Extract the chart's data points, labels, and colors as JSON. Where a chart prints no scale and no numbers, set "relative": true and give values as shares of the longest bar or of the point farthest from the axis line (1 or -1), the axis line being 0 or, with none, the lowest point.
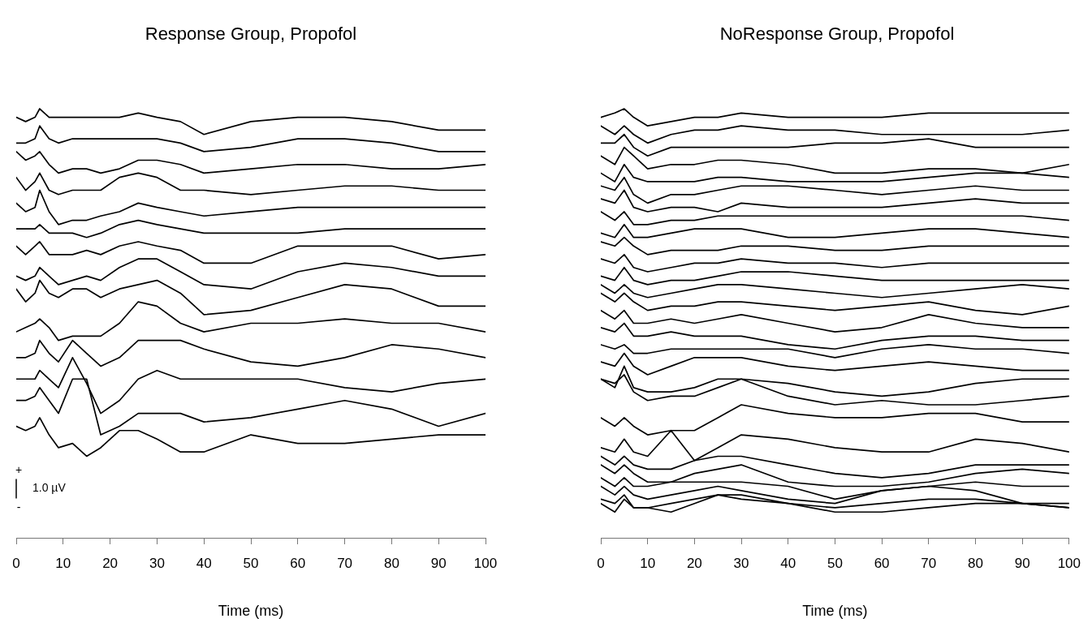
{
  "chart_data": [
    {
      "type": "line",
      "title": "Response Group, Propofol",
      "xlabel": "Time (ms)",
      "x": [
        0,
        2,
        4,
        5,
        7,
        9,
        12,
        15,
        18,
        22,
        26,
        30,
        35,
        40,
        50,
        60,
        70,
        80,
        90,
        100
      ],
      "xlim": [
        0,
        100
      ],
      "xticks": [
        0,
        10,
        20,
        30,
        40,
        50,
        60,
        70,
        80,
        90,
        100
      ],
      "relative": true,
      "grid": false,
      "legend": false,
      "marker": "none",
      "annotations": [
        "+",
        "1.0 µV",
        "-"
      ],
      "series": [
        {
          "color": "#000000",
          "values": [
            0.98,
            0.97,
            0.98,
            1.0,
            0.98,
            0.98,
            0.98,
            0.98,
            0.98,
            0.98,
            0.99,
            0.98,
            0.97,
            0.94,
            0.97,
            0.98,
            0.98,
            0.97,
            0.95,
            0.95
          ]
        },
        {
          "color": "#000000",
          "values": [
            0.92,
            0.92,
            0.93,
            0.96,
            0.93,
            0.92,
            0.93,
            0.93,
            0.93,
            0.93,
            0.93,
            0.93,
            0.92,
            0.9,
            0.91,
            0.93,
            0.93,
            0.92,
            0.9,
            0.9
          ]
        },
        {
          "color": "#000000",
          "values": [
            0.9,
            0.88,
            0.89,
            0.9,
            0.87,
            0.85,
            0.86,
            0.86,
            0.85,
            0.86,
            0.88,
            0.88,
            0.87,
            0.85,
            0.86,
            0.87,
            0.87,
            0.86,
            0.86,
            0.87
          ]
        },
        {
          "color": "#000000",
          "values": [
            0.84,
            0.81,
            0.83,
            0.85,
            0.81,
            0.8,
            0.81,
            0.81,
            0.81,
            0.84,
            0.85,
            0.84,
            0.81,
            0.81,
            0.8,
            0.81,
            0.82,
            0.82,
            0.81,
            0.81
          ]
        },
        {
          "color": "#000000",
          "values": [
            0.78,
            0.76,
            0.77,
            0.81,
            0.76,
            0.73,
            0.74,
            0.74,
            0.75,
            0.76,
            0.78,
            0.77,
            0.76,
            0.75,
            0.76,
            0.77,
            0.77,
            0.77,
            0.77,
            0.77
          ]
        },
        {
          "color": "#000000",
          "values": [
            0.72,
            0.72,
            0.72,
            0.73,
            0.71,
            0.71,
            0.71,
            0.7,
            0.71,
            0.73,
            0.74,
            0.73,
            0.72,
            0.71,
            0.71,
            0.71,
            0.72,
            0.72,
            0.72,
            0.72
          ]
        },
        {
          "color": "#000000",
          "values": [
            0.68,
            0.66,
            0.68,
            0.69,
            0.66,
            0.66,
            0.66,
            0.67,
            0.66,
            0.68,
            0.69,
            0.68,
            0.67,
            0.64,
            0.64,
            0.68,
            0.68,
            0.68,
            0.65,
            0.66
          ]
        },
        {
          "color": "#000000",
          "values": [
            0.61,
            0.6,
            0.61,
            0.63,
            0.61,
            0.59,
            0.6,
            0.61,
            0.6,
            0.63,
            0.65,
            0.65,
            0.62,
            0.59,
            0.58,
            0.62,
            0.64,
            0.63,
            0.61,
            0.61
          ]
        },
        {
          "color": "#000000",
          "values": [
            0.58,
            0.55,
            0.57,
            0.6,
            0.57,
            0.56,
            0.58,
            0.58,
            0.56,
            0.58,
            0.59,
            0.6,
            0.57,
            0.52,
            0.53,
            0.56,
            0.59,
            0.58,
            0.54,
            0.54
          ]
        },
        {
          "color": "#000000",
          "values": [
            0.48,
            0.49,
            0.5,
            0.51,
            0.49,
            0.46,
            0.47,
            0.47,
            0.47,
            0.5,
            0.55,
            0.54,
            0.5,
            0.48,
            0.5,
            0.5,
            0.51,
            0.5,
            0.5,
            0.48
          ]
        },
        {
          "color": "#000000",
          "values": [
            0.42,
            0.42,
            0.43,
            0.46,
            0.43,
            0.41,
            0.46,
            0.43,
            0.4,
            0.42,
            0.46,
            0.46,
            0.46,
            0.44,
            0.41,
            0.4,
            0.42,
            0.45,
            0.44,
            0.42
          ]
        },
        {
          "color": "#000000",
          "values": [
            0.37,
            0.37,
            0.37,
            0.39,
            0.37,
            0.35,
            0.42,
            0.36,
            0.29,
            0.32,
            0.37,
            0.39,
            0.37,
            0.37,
            0.37,
            0.37,
            0.35,
            0.34,
            0.36,
            0.37
          ]
        },
        {
          "color": "#000000",
          "values": [
            0.32,
            0.32,
            0.33,
            0.35,
            0.32,
            0.29,
            0.37,
            0.37,
            0.24,
            0.26,
            0.29,
            0.29,
            0.29,
            0.27,
            0.28,
            0.3,
            0.32,
            0.3,
            0.26,
            0.29
          ]
        },
        {
          "color": "#000000",
          "values": [
            0.26,
            0.25,
            0.26,
            0.28,
            0.24,
            0.21,
            0.22,
            0.19,
            0.21,
            0.25,
            0.25,
            0.23,
            0.2,
            0.2,
            0.24,
            0.22,
            0.22,
            0.23,
            0.24,
            0.24
          ]
        }
      ]
    },
    {
      "type": "line",
      "title": "NoResponse Group, Propofol",
      "xlabel": "Time (ms)",
      "x": [
        0,
        3,
        5,
        7,
        10,
        15,
        20,
        25,
        30,
        40,
        50,
        60,
        70,
        80,
        90,
        100
      ],
      "xlim": [
        0,
        100
      ],
      "xticks": [
        0,
        10,
        20,
        30,
        40,
        50,
        60,
        70,
        80,
        90,
        100
      ],
      "relative": true,
      "grid": false,
      "legend": false,
      "marker": "none",
      "series": [
        {
          "color": "#000000",
          "values": [
            0.98,
            0.99,
            1.0,
            0.98,
            0.96,
            0.97,
            0.98,
            0.98,
            0.99,
            0.98,
            0.98,
            0.98,
            0.99,
            0.99,
            0.99,
            0.99
          ]
        },
        {
          "color": "#000000",
          "values": [
            0.96,
            0.94,
            0.96,
            0.94,
            0.92,
            0.94,
            0.95,
            0.95,
            0.96,
            0.95,
            0.95,
            0.94,
            0.94,
            0.94,
            0.94,
            0.95
          ]
        },
        {
          "color": "#000000",
          "values": [
            0.92,
            0.92,
            0.94,
            0.91,
            0.89,
            0.91,
            0.91,
            0.91,
            0.91,
            0.91,
            0.92,
            0.92,
            0.93,
            0.91,
            0.91,
            0.91
          ]
        },
        {
          "color": "#000000",
          "values": [
            0.89,
            0.87,
            0.91,
            0.89,
            0.86,
            0.87,
            0.87,
            0.88,
            0.88,
            0.87,
            0.85,
            0.85,
            0.86,
            0.86,
            0.85,
            0.87
          ]
        },
        {
          "color": "#000000",
          "values": [
            0.85,
            0.83,
            0.87,
            0.84,
            0.83,
            0.83,
            0.83,
            0.84,
            0.84,
            0.83,
            0.83,
            0.83,
            0.84,
            0.85,
            0.85,
            0.84
          ]
        },
        {
          "color": "#000000",
          "values": [
            0.82,
            0.81,
            0.84,
            0.8,
            0.78,
            0.8,
            0.8,
            0.81,
            0.82,
            0.82,
            0.81,
            0.8,
            0.81,
            0.82,
            0.81,
            0.81
          ]
        },
        {
          "color": "#000000",
          "values": [
            0.79,
            0.78,
            0.81,
            0.77,
            0.76,
            0.77,
            0.77,
            0.76,
            0.78,
            0.77,
            0.77,
            0.77,
            0.78,
            0.79,
            0.78,
            0.78
          ]
        },
        {
          "color": "#000000",
          "values": [
            0.76,
            0.74,
            0.76,
            0.73,
            0.73,
            0.74,
            0.74,
            0.75,
            0.75,
            0.75,
            0.75,
            0.75,
            0.75,
            0.75,
            0.75,
            0.74
          ]
        },
        {
          "color": "#000000",
          "values": [
            0.71,
            0.7,
            0.73,
            0.7,
            0.7,
            0.71,
            0.72,
            0.72,
            0.72,
            0.7,
            0.7,
            0.71,
            0.72,
            0.72,
            0.71,
            0.7
          ]
        },
        {
          "color": "#000000",
          "values": [
            0.69,
            0.68,
            0.7,
            0.68,
            0.66,
            0.67,
            0.67,
            0.67,
            0.68,
            0.68,
            0.67,
            0.67,
            0.68,
            0.68,
            0.68,
            0.68
          ]
        },
        {
          "color": "#000000",
          "values": [
            0.65,
            0.64,
            0.66,
            0.63,
            0.62,
            0.63,
            0.64,
            0.64,
            0.65,
            0.64,
            0.64,
            0.63,
            0.64,
            0.64,
            0.64,
            0.64
          ]
        },
        {
          "color": "#000000",
          "values": [
            0.61,
            0.6,
            0.63,
            0.6,
            0.59,
            0.6,
            0.6,
            0.61,
            0.62,
            0.62,
            0.61,
            0.6,
            0.6,
            0.6,
            0.6,
            0.6
          ]
        },
        {
          "color": "#000000",
          "values": [
            0.59,
            0.57,
            0.59,
            0.57,
            0.56,
            0.57,
            0.58,
            0.59,
            0.59,
            0.58,
            0.57,
            0.56,
            0.57,
            0.58,
            0.59,
            0.58
          ]
        },
        {
          "color": "#000000",
          "values": [
            0.57,
            0.55,
            0.57,
            0.55,
            0.53,
            0.54,
            0.54,
            0.55,
            0.55,
            0.54,
            0.53,
            0.54,
            0.55,
            0.53,
            0.52,
            0.54
          ]
        },
        {
          "color": "#000000",
          "values": [
            0.53,
            0.51,
            0.53,
            0.5,
            0.5,
            0.51,
            0.5,
            0.51,
            0.52,
            0.5,
            0.48,
            0.49,
            0.52,
            0.5,
            0.49,
            0.49
          ]
        },
        {
          "color": "#000000",
          "values": [
            0.49,
            0.48,
            0.5,
            0.47,
            0.47,
            0.48,
            0.47,
            0.47,
            0.47,
            0.45,
            0.44,
            0.46,
            0.47,
            0.47,
            0.46,
            0.46
          ]
        },
        {
          "color": "#000000",
          "values": [
            0.45,
            0.44,
            0.45,
            0.43,
            0.43,
            0.44,
            0.44,
            0.44,
            0.44,
            0.44,
            0.42,
            0.44,
            0.45,
            0.44,
            0.44,
            0.43
          ]
        },
        {
          "color": "#000000",
          "values": [
            0.41,
            0.4,
            0.43,
            0.4,
            0.38,
            0.4,
            0.42,
            0.42,
            0.42,
            0.4,
            0.39,
            0.4,
            0.41,
            0.4,
            0.39,
            0.39
          ]
        },
        {
          "color": "#000000",
          "values": [
            0.37,
            0.35,
            0.4,
            0.35,
            0.34,
            0.34,
            0.35,
            0.37,
            0.37,
            0.36,
            0.34,
            0.33,
            0.34,
            0.36,
            0.37,
            0.37
          ]
        },
        {
          "color": "#000000",
          "values": [
            0.37,
            0.36,
            0.38,
            0.34,
            0.32,
            0.33,
            0.33,
            0.35,
            0.37,
            0.33,
            0.31,
            0.32,
            0.31,
            0.31,
            0.32,
            0.33
          ]
        },
        {
          "color": "#000000",
          "values": [
            0.28,
            0.26,
            0.28,
            0.26,
            0.24,
            0.25,
            0.25,
            0.28,
            0.31,
            0.29,
            0.28,
            0.28,
            0.29,
            0.29,
            0.27,
            0.27
          ]
        },
        {
          "color": "#000000",
          "values": [
            0.21,
            0.2,
            0.23,
            0.2,
            0.19,
            0.25,
            0.18,
            0.21,
            0.24,
            0.23,
            0.21,
            0.2,
            0.2,
            0.23,
            0.22,
            0.2
          ]
        },
        {
          "color": "#000000",
          "values": [
            0.19,
            0.17,
            0.19,
            0.17,
            0.16,
            0.16,
            0.18,
            0.19,
            0.19,
            0.17,
            0.15,
            0.14,
            0.15,
            0.17,
            0.17,
            0.17
          ]
        },
        {
          "color": "#000000",
          "values": [
            0.17,
            0.15,
            0.17,
            0.15,
            0.13,
            0.13,
            0.15,
            0.16,
            0.17,
            0.13,
            0.12,
            0.12,
            0.13,
            0.15,
            0.16,
            0.15
          ]
        },
        {
          "color": "#000000",
          "values": [
            0.14,
            0.12,
            0.14,
            0.12,
            0.12,
            0.13,
            0.13,
            0.13,
            0.13,
            0.12,
            0.09,
            0.11,
            0.12,
            0.13,
            0.12,
            0.12
          ]
        },
        {
          "color": "#000000",
          "values": [
            0.12,
            0.1,
            0.12,
            0.1,
            0.09,
            0.1,
            0.11,
            0.12,
            0.11,
            0.09,
            0.08,
            0.11,
            0.12,
            0.11,
            0.08,
            0.07
          ]
        },
        {
          "color": "#000000",
          "values": [
            0.09,
            0.08,
            0.1,
            0.07,
            0.07,
            0.08,
            0.09,
            0.1,
            0.09,
            0.08,
            0.07,
            0.08,
            0.09,
            0.09,
            0.08,
            0.07
          ]
        },
        {
          "color": "#000000",
          "values": [
            0.08,
            0.06,
            0.09,
            0.07,
            0.07,
            0.06,
            0.08,
            0.1,
            0.1,
            0.08,
            0.06,
            0.06,
            0.07,
            0.08,
            0.08,
            0.08
          ]
        }
      ]
    }
  ]
}
